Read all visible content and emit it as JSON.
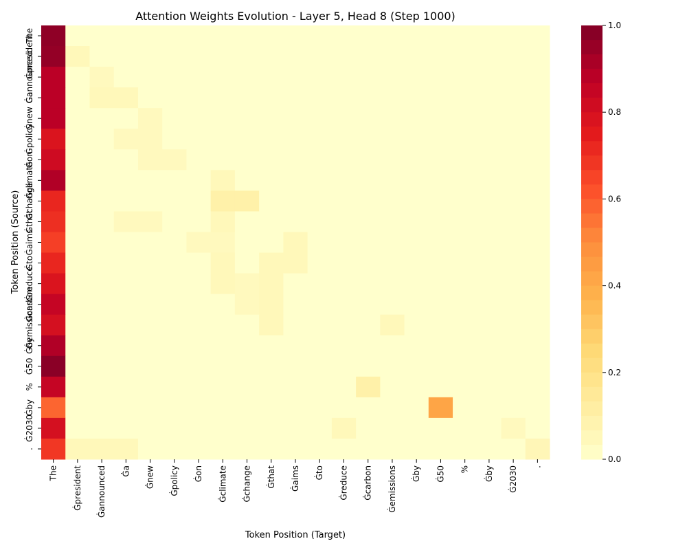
{
  "chart_data": {
    "type": "heatmap",
    "title": "Attention Weights Evolution - Layer 5, Head 8 (Step 1000)",
    "xlabel": "Token Position (Target)",
    "ylabel": "Token Position (Source)",
    "x_tokens": [
      "The",
      "Ġpresident",
      "Ġannounced",
      "Ġa",
      "Ġnew",
      "Ġpolicy",
      "Ġon",
      "Ġclimate",
      "Ġchange",
      "Ġthat",
      "Ġaims",
      "Ġto",
      "Ġreduce",
      "Ġcarbon",
      "Ġemissions",
      "Ġby",
      "Ġ50",
      "%",
      "Ġby",
      "Ġ2030",
      "."
    ],
    "y_tokens": [
      "The",
      "Ġpresident",
      "Ġannounced",
      "Ġa",
      "Ġnew",
      "Ġpolicy",
      "Ġon",
      "Ġclimate",
      "Ġchange",
      "Ġthat",
      "Ġaims",
      "Ġto",
      "Ġreduce",
      "Ġcarbon",
      "Ġemissions",
      "Ġby",
      "Ġ50",
      "%",
      "Ġby",
      "Ġ2030",
      "."
    ],
    "y_tick_labels_shown": [
      "The",
      "Ġpresident",
      "Ġannounced",
      "Ġa",
      "Ġnew",
      "Ġpolicy",
      "Ġon",
      "Ġclimate",
      "Ġchange",
      "Ġthat",
      "Ġaims",
      "Ġto",
      "Ġreduce",
      "Ġcarbon",
      "Ġemissions",
      "Ġby",
      "Ġ50",
      "%",
      "Ġby",
      "Ġ2030",
      "."
    ],
    "colorbar": {
      "min": 0.0,
      "max": 1.0,
      "ticks": [
        0.0,
        0.2,
        0.4,
        0.6,
        0.8,
        1.0
      ],
      "colormap": "YlOrRd"
    },
    "values": [
      [
        0.97,
        0,
        0,
        0,
        0,
        0,
        0,
        0,
        0,
        0,
        0,
        0,
        0,
        0,
        0,
        0,
        0,
        0,
        0,
        0,
        0
      ],
      [
        0.96,
        0.05,
        0,
        0,
        0,
        0,
        0,
        0,
        0,
        0,
        0,
        0,
        0,
        0,
        0,
        0,
        0,
        0,
        0,
        0,
        0
      ],
      [
        0.88,
        0,
        0.04,
        0,
        0,
        0,
        0,
        0,
        0,
        0,
        0,
        0,
        0,
        0,
        0,
        0,
        0,
        0,
        0,
        0,
        0
      ],
      [
        0.88,
        0,
        0.05,
        0.05,
        0,
        0,
        0,
        0,
        0,
        0,
        0,
        0,
        0,
        0,
        0,
        0,
        0,
        0,
        0,
        0,
        0
      ],
      [
        0.88,
        0,
        0,
        0,
        0.04,
        0,
        0,
        0,
        0,
        0,
        0,
        0,
        0,
        0,
        0,
        0,
        0,
        0,
        0,
        0,
        0
      ],
      [
        0.78,
        0,
        0,
        0.04,
        0.04,
        0,
        0,
        0,
        0,
        0,
        0,
        0,
        0,
        0,
        0,
        0,
        0,
        0,
        0,
        0,
        0
      ],
      [
        0.82,
        0,
        0,
        0,
        0.04,
        0.04,
        0,
        0,
        0,
        0,
        0,
        0,
        0,
        0,
        0,
        0,
        0,
        0,
        0,
        0,
        0
      ],
      [
        0.9,
        0,
        0,
        0,
        0,
        0,
        0,
        0.05,
        0,
        0,
        0,
        0,
        0,
        0,
        0,
        0,
        0,
        0,
        0,
        0,
        0
      ],
      [
        0.72,
        0,
        0,
        0,
        0,
        0,
        0,
        0.1,
        0.1,
        0,
        0,
        0,
        0,
        0,
        0,
        0,
        0,
        0,
        0,
        0,
        0
      ],
      [
        0.7,
        0,
        0,
        0.04,
        0.04,
        0,
        0,
        0.05,
        0,
        0,
        0,
        0,
        0,
        0,
        0,
        0,
        0,
        0,
        0,
        0,
        0
      ],
      [
        0.66,
        0,
        0,
        0,
        0,
        0,
        0.04,
        0.04,
        0,
        0,
        0.05,
        0,
        0,
        0,
        0,
        0,
        0,
        0,
        0,
        0,
        0
      ],
      [
        0.72,
        0,
        0,
        0,
        0,
        0,
        0,
        0.05,
        0,
        0.05,
        0.05,
        0,
        0,
        0,
        0,
        0,
        0,
        0,
        0,
        0,
        0
      ],
      [
        0.78,
        0,
        0,
        0,
        0,
        0,
        0,
        0.05,
        0.04,
        0.05,
        0,
        0,
        0,
        0,
        0,
        0,
        0,
        0,
        0,
        0,
        0
      ],
      [
        0.85,
        0,
        0,
        0,
        0,
        0,
        0,
        0,
        0.04,
        0.05,
        0,
        0,
        0,
        0,
        0,
        0,
        0,
        0,
        0,
        0,
        0
      ],
      [
        0.8,
        0,
        0,
        0,
        0,
        0,
        0,
        0,
        0,
        0.05,
        0,
        0,
        0,
        0,
        0.05,
        0,
        0,
        0,
        0,
        0,
        0
      ],
      [
        0.9,
        0,
        0,
        0,
        0,
        0,
        0,
        0,
        0,
        0,
        0,
        0,
        0,
        0,
        0,
        0,
        0,
        0,
        0,
        0,
        0
      ],
      [
        0.98,
        0,
        0,
        0,
        0,
        0,
        0,
        0,
        0,
        0,
        0,
        0,
        0,
        0,
        0,
        0,
        0,
        0,
        0,
        0,
        0
      ],
      [
        0.85,
        0,
        0,
        0,
        0,
        0,
        0,
        0,
        0,
        0,
        0,
        0,
        0,
        0.1,
        0,
        0,
        0,
        0,
        0,
        0,
        0
      ],
      [
        0.58,
        0,
        0,
        0,
        0,
        0,
        0,
        0,
        0,
        0,
        0,
        0,
        0,
        0,
        0,
        0,
        0.42,
        0,
        0,
        0,
        0
      ],
      [
        0.8,
        0,
        0,
        0,
        0,
        0,
        0,
        0,
        0,
        0,
        0,
        0,
        0.05,
        0,
        0,
        0,
        0,
        0,
        0,
        0.04,
        0
      ],
      [
        0.68,
        0.05,
        0.05,
        0.05,
        0,
        0,
        0,
        0,
        0,
        0,
        0,
        0,
        0,
        0,
        0,
        0,
        0,
        0,
        0,
        0,
        0.06
      ]
    ]
  }
}
